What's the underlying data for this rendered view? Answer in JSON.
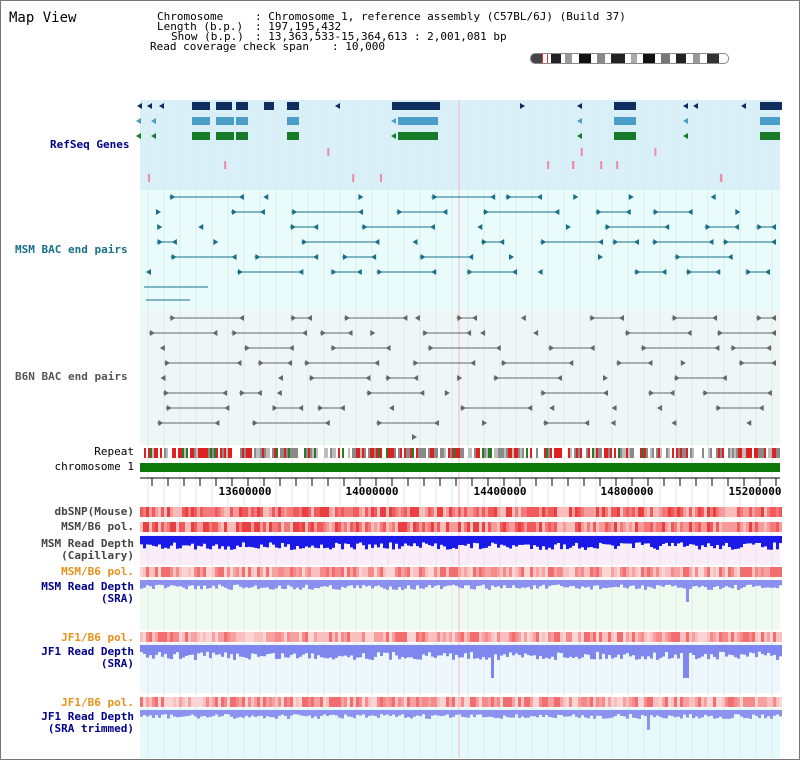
{
  "app": {
    "title": "Map View"
  },
  "info": {
    "chromosome_key": "Chromosome",
    "chromosome_value": ": Chromosome 1, reference assembly (C57BL/6J) (Build 37)",
    "length_key": "Length (b.p.)",
    "length_value": ": 197,195,432",
    "show_key": "Show (b.p.)",
    "show_value": ": 13,363,533-15,364,613 : 2,001,081 bp",
    "span_key": "Read coverage check span",
    "span_value": ": 10,000"
  },
  "tracks": {
    "refseq": "RefSeq Genes",
    "msm_bac": "MSM BAC end pairs",
    "b6n_bac": "B6N BAC end pairs",
    "repeat": "Repeat",
    "chromosome": "chromosome 1",
    "dbsnp": "dbSNP(Mouse)",
    "msm_pol": "MSM/B6 pol.",
    "msm_depth_cap_1": "MSM Read Depth",
    "msm_depth_cap_2": "(Capillary)",
    "msm_pol2": "MSM/B6 pol.",
    "msm_depth_sra_1": "MSM Read Depth",
    "msm_depth_sra_2": "(SRA)",
    "jf1_pol": "JF1/B6 pol.",
    "jf1_depth_1": "JF1 Read Depth",
    "jf1_depth_2": "(SRA)",
    "jf1_pol2": "JF1/B6 pol.",
    "jf1_trim_1": "JF1 Read Depth",
    "jf1_trim_2": "(SRA trimmed)"
  },
  "axis": {
    "ticks": [
      "13600000",
      "14000000",
      "14400000",
      "14800000",
      "15200000"
    ]
  },
  "colors": {
    "refseq_bg": "#d9f0f8",
    "bac_bg": "#e9fbfb",
    "gene_navy": "#0d2e5e",
    "gene_blue": "#4a9ec8",
    "gene_green": "#177b28",
    "bac_teal": "#1a6f88",
    "bac_gray": "#555555",
    "chromosome_green": "#0b7a0b",
    "label_blue": "#00008b",
    "label_orange": "#e8901a",
    "label_teal": "#1a6f88"
  },
  "icons": [
    "chromosome-ideogram-icon"
  ]
}
